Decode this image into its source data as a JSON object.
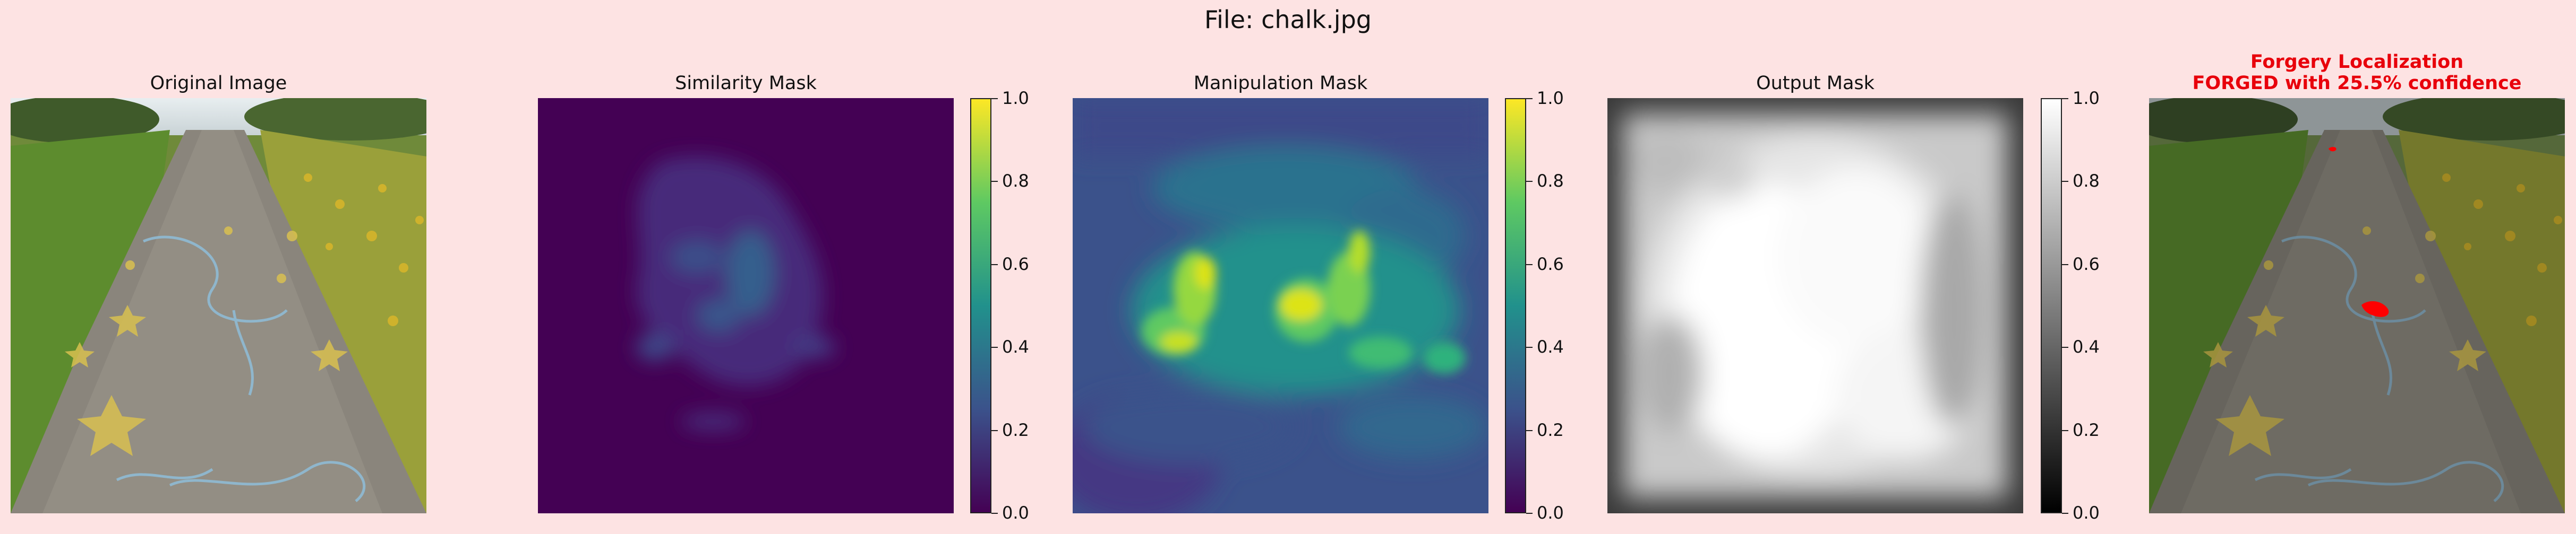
{
  "figure": {
    "title": "File: chalk.jpg"
  },
  "panels": [
    {
      "id": "original",
      "title": "Original Image"
    },
    {
      "id": "similarity",
      "title": "Similarity Mask",
      "colormap": "viridis"
    },
    {
      "id": "manipulation",
      "title": "Manipulation Mask",
      "colormap": "viridis"
    },
    {
      "id": "output",
      "title": "Output Mask",
      "colormap": "gray"
    },
    {
      "id": "localization",
      "title_line1": "Forgery Localization",
      "title_line2": "FORGED with 25.5% confidence"
    }
  ],
  "colorbar": {
    "ticks": [
      {
        "value": 0.0,
        "label": "0.0"
      },
      {
        "value": 0.2,
        "label": "0.2"
      },
      {
        "value": 0.4,
        "label": "0.4"
      },
      {
        "value": 0.6,
        "label": "0.6"
      },
      {
        "value": 0.8,
        "label": "0.8"
      },
      {
        "value": 1.0,
        "label": "1.0"
      }
    ]
  },
  "colors": {
    "background": "#fde3e3",
    "forgery_title": "#e8000b",
    "forgery_overlay": "#ff0000",
    "viridis_min": "#440154",
    "viridis_max": "#fde725"
  }
}
